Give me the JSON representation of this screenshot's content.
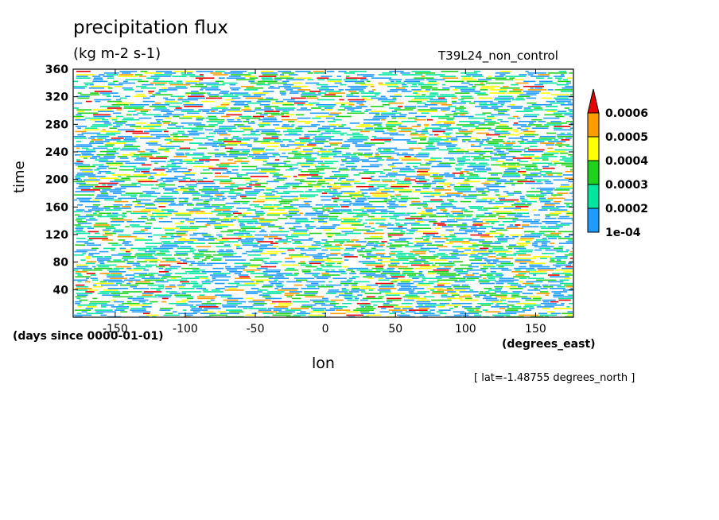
{
  "chart_data": {
    "type": "heatmap",
    "title": "precipitation flux",
    "units": "(kg m-2 s-1)",
    "run_label": "T39L24_non_control",
    "xlabel": "lon",
    "x_units": "(degrees_east)",
    "ylabel": "time",
    "y_units": "(days since 0000-01-01)",
    "annotation": "[ lat=-1.48755 degrees_north ]",
    "xlim": [
      -180,
      177
    ],
    "ylim": [
      0,
      360
    ],
    "x_ticks": [
      -150,
      -100,
      -50,
      0,
      50,
      100,
      150
    ],
    "x_tick_labels": [
      "-150",
      "-100",
      "-50",
      "0",
      "50",
      "100",
      "150"
    ],
    "y_ticks": [
      40,
      80,
      120,
      160,
      200,
      240,
      280,
      320,
      360
    ],
    "y_tick_labels": [
      "40",
      "80",
      "120",
      "160",
      "200",
      "240",
      "280",
      "320",
      "360"
    ],
    "colorbar": {
      "levels": [
        0.0001,
        0.0002,
        0.0003,
        0.0004,
        0.0005,
        0.0006
      ],
      "level_labels": [
        "1e-04",
        "0.0002",
        "0.0003",
        "0.0004",
        "0.0005",
        "0.0006"
      ],
      "colors": [
        "#1e9bff",
        "#00e6a0",
        "#1ed21e",
        "#ffff00",
        "#ff9c00",
        "#e60000"
      ],
      "extend": "max"
    }
  }
}
